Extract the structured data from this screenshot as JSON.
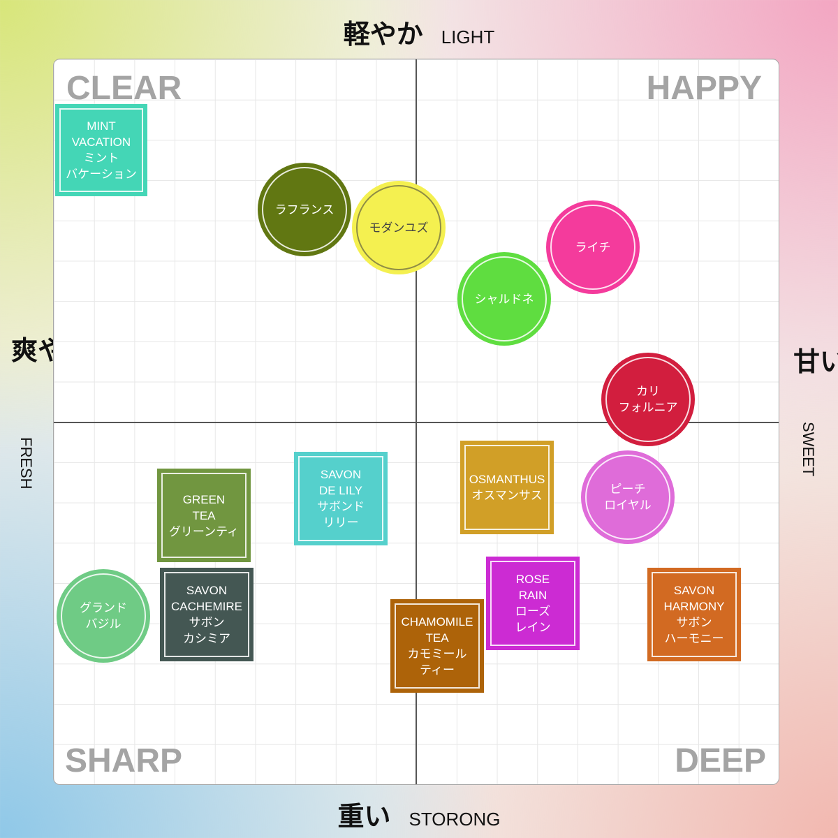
{
  "axes": {
    "top": {
      "jp": "軽やか",
      "en": "LIGHT"
    },
    "bottom": {
      "jp": "重い",
      "en": "STORONG"
    },
    "left": {
      "jp": "爽やか",
      "en": "FRESH"
    },
    "right": {
      "jp": "甘い",
      "en": "SWEET"
    }
  },
  "quadrants": {
    "top_left": "CLEAR",
    "top_right": "HAPPY",
    "bottom_left": "SHARP",
    "bottom_right": "DEEP"
  },
  "items": {
    "mint": {
      "label": "MINT\nVACATION\nミント\nバケーション",
      "color": "#44d6b6"
    },
    "lafrance": {
      "label": "ラフランス",
      "color": "#617712"
    },
    "modernyuzu": {
      "label": "モダンユズ",
      "color": "#f4f050"
    },
    "lychee": {
      "label": "ライチ",
      "color": "#f43b9c"
    },
    "chardonnay": {
      "label": "シャルドネ",
      "color": "#5fdd40"
    },
    "california": {
      "label": "カリ\nフォルニア",
      "color": "#d21e3e"
    },
    "peach": {
      "label": "ピーチ\nロイヤル",
      "color": "#df6cd9"
    },
    "savonlily": {
      "label": "SAVON\nDE LILY\nサボンド\nリリー",
      "color": "#55d0cc"
    },
    "greentea": {
      "label": "GREEN\nTEA\nグリーンティ",
      "color": "#719640"
    },
    "osmanthus": {
      "label": "OSMANTHUS\nオスマンサス",
      "color": "#d19f27"
    },
    "grandbasil": {
      "label": "グランド\nバジル",
      "color": "#6fcb85"
    },
    "cachemire": {
      "label": "SAVON\nCACHEMIRE\nサボン\nカシミア",
      "color": "#445753"
    },
    "roserain": {
      "label": "ROSE\nRAIN\nローズ\nレイン",
      "color": "#cc2bd3"
    },
    "harmony": {
      "label": "SAVON\nHARMONY\nサボン\nハーモニー",
      "color": "#d26a22"
    },
    "chamomile": {
      "label": "CHAMOMILE\nTEA\nカモミール\nティー",
      "color": "#ad6309"
    }
  }
}
